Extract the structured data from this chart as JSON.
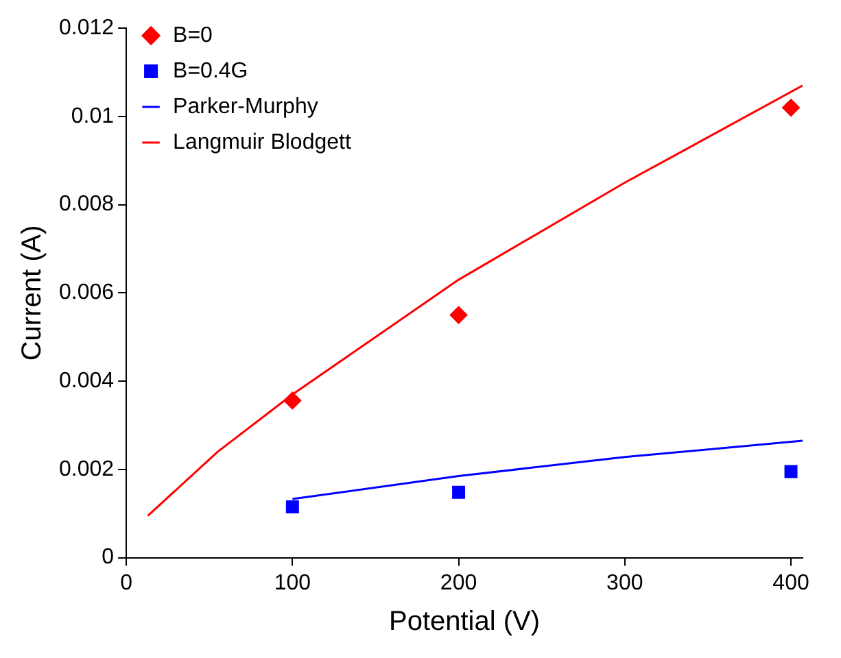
{
  "chart_data": {
    "type": "scatter",
    "xlabel": "Potential (V)",
    "ylabel": "Current (A)",
    "xlim": [
      0,
      407
    ],
    "xticks": [
      0,
      100,
      200,
      300,
      400
    ],
    "ylim": [
      0,
      0.012
    ],
    "yticks": [
      0,
      0.002,
      0.004,
      0.006,
      0.008,
      0.01,
      0.012
    ],
    "grid": false,
    "legend": "top left",
    "series": [
      {
        "name": "B=0",
        "marker": "diamond",
        "color": "#ff0000",
        "x": [
          100,
          200,
          400
        ],
        "values": [
          0.00356,
          0.0055,
          0.0102
        ]
      },
      {
        "name": "B=0.4G",
        "marker": "square",
        "color": "#0000ff",
        "x": [
          100,
          200,
          400
        ],
        "values": [
          0.00115,
          0.00148,
          0.00195
        ]
      },
      {
        "name": "Parker-Murphy",
        "type": "line",
        "marker": "none",
        "color": "#0000ff",
        "x": [
          100,
          200,
          300,
          407
        ],
        "values": [
          0.00133,
          0.00185,
          0.00228,
          0.00265
        ]
      },
      {
        "name": "Langmuir Blodgett",
        "type": "line",
        "marker": "none",
        "color": "#ff0000",
        "x": [
          13,
          55,
          100,
          200,
          300,
          407
        ],
        "values": [
          0.00095,
          0.0024,
          0.0037,
          0.0063,
          0.0085,
          0.0107
        ]
      }
    ]
  }
}
